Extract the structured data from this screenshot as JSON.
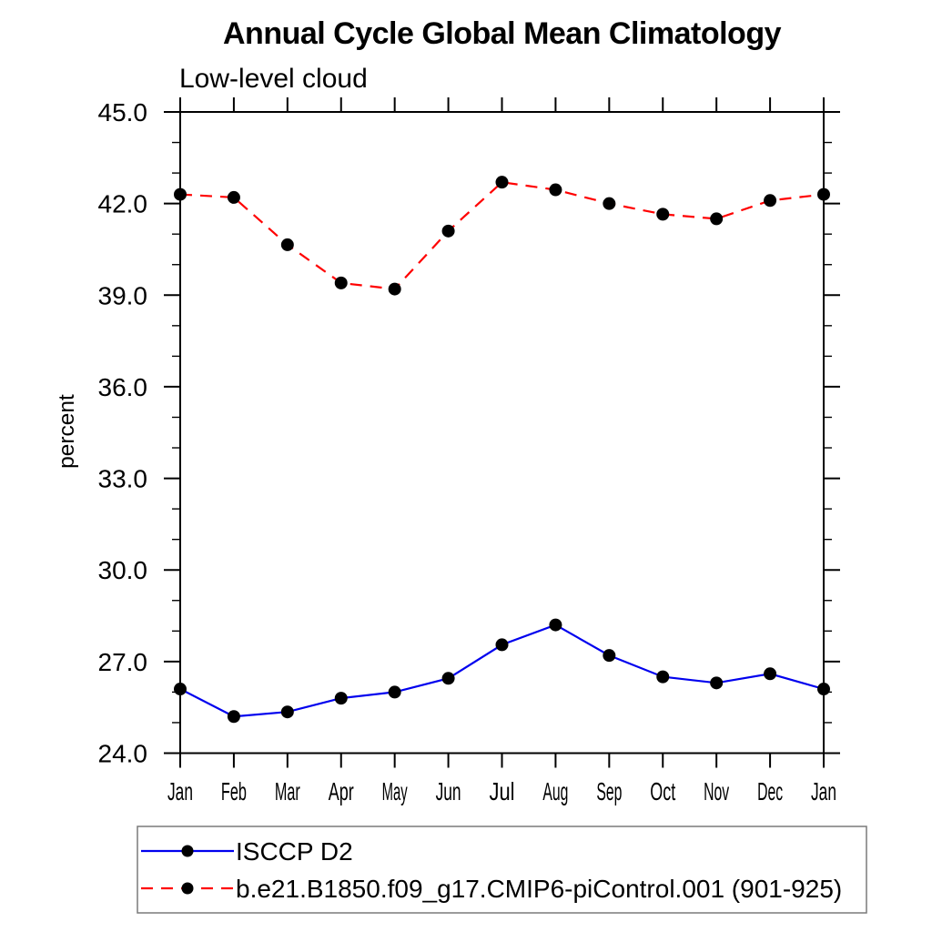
{
  "title": "Annual Cycle Global Mean Climatology",
  "subtitle": "Low-level cloud",
  "chart_data": {
    "type": "line",
    "title": "Annual Cycle Global Mean Climatology",
    "subtitle": "Low-level cloud",
    "xlabel": "",
    "ylabel": "percent",
    "categories": [
      "Jan",
      "Feb",
      "Mar",
      "Apr",
      "May",
      "Jun",
      "Jul",
      "Aug",
      "Sep",
      "Oct",
      "Nov",
      "Dec",
      "Jan"
    ],
    "ylim": [
      24.0,
      45.0
    ],
    "ytick_major_step": 3.0,
    "ytick_minor_step": 1.0,
    "ytick_labels": [
      "24.0",
      "27.0",
      "30.0",
      "33.0",
      "36.0",
      "39.0",
      "42.0",
      "45.0"
    ],
    "grid": false,
    "legend_position": "bottom-left boxed",
    "marker": "filled-circle",
    "marker_color": "#000000",
    "series": [
      {
        "name": "ISCCP D2",
        "color": "#0000ee",
        "line_style": "solid",
        "values": [
          26.1,
          25.2,
          25.35,
          25.8,
          26.0,
          26.45,
          27.55,
          28.2,
          27.2,
          26.5,
          26.3,
          26.6,
          26.1
        ]
      },
      {
        "name": "b.e21.B1850.f09_g17.CMIP6-piControl.001 (901-925)",
        "color": "#ff0000",
        "line_style": "dashed",
        "values": [
          42.3,
          42.2,
          40.65,
          39.4,
          39.2,
          41.1,
          42.7,
          42.45,
          42.0,
          41.65,
          41.5,
          42.1,
          42.3
        ]
      }
    ]
  }
}
